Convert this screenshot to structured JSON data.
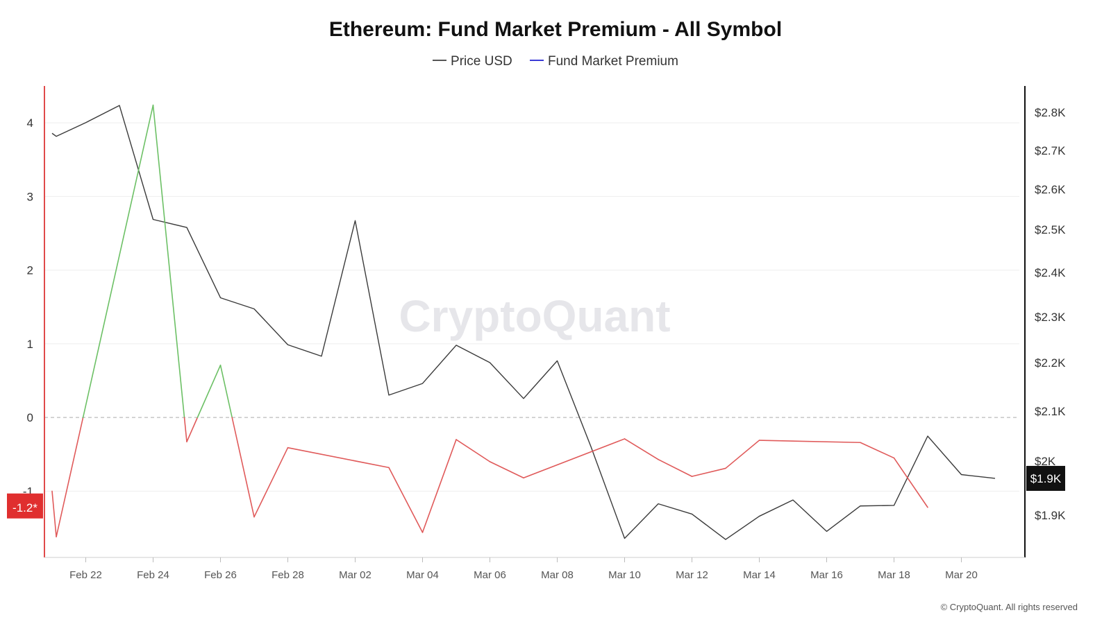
{
  "title": "Ethereum: Fund Market Premium - All Symbol",
  "legend": [
    {
      "label": "Price USD",
      "color": "#555555"
    },
    {
      "label": "Fund Market Premium",
      "color": "#3b3bd6"
    }
  ],
  "copyright": "© CryptoQuant. All rights reserved",
  "watermark": "CryptoQuant",
  "colors": {
    "price": "#3a3a3a",
    "premium_positive": "#6cc065",
    "premium_negative": "#e05a5a",
    "left_axis": "#e04a4a",
    "right_axis": "#111111",
    "zero_line": "#bbbbbb",
    "grid": "#eeeeee",
    "left_badge_bg": "#e02f2f",
    "right_badge_bg": "#111111"
  },
  "chart_data": {
    "type": "line",
    "title": "Ethereum: Fund Market Premium - All Symbol",
    "x_ticks": [
      "Feb 22",
      "Feb 24",
      "Feb 26",
      "Feb 28",
      "Mar 02",
      "Mar 04",
      "Mar 06",
      "Mar 08",
      "Mar 10",
      "Mar 12",
      "Mar 14",
      "Mar 16",
      "Mar 18",
      "Mar 20"
    ],
    "left_axis": {
      "ticks": [
        "4",
        "3",
        "2",
        "1",
        "0",
        "-1"
      ],
      "ylim": [
        -1.9,
        4.5
      ]
    },
    "right_axis": {
      "ticks": [
        "$2.8K",
        "$2.7K",
        "$2.6K",
        "$2.5K",
        "$2.4K",
        "$2.3K",
        "$2.2K",
        "$2.1K",
        "$2K",
        "$1.9K"
      ],
      "ylim": [
        1830,
        2850
      ]
    },
    "left_current_label": "-1.2*",
    "right_current_label": "$1.9K",
    "series": [
      {
        "name": "Price USD",
        "axis": "right",
        "x": [
          "2025-02-21",
          "2025-02-21T03",
          "2025-02-22",
          "2025-02-23",
          "2025-02-24",
          "2025-02-25",
          "2025-02-26",
          "2025-02-27",
          "2025-02-28",
          "2025-03-01",
          "2025-03-02",
          "2025-03-03",
          "2025-03-04",
          "2025-03-05",
          "2025-03-06",
          "2025-03-07",
          "2025-03-08",
          "2025-03-09",
          "2025-03-10",
          "2025-03-11",
          "2025-03-12",
          "2025-03-13",
          "2025-03-14",
          "2025-03-15",
          "2025-03-16",
          "2025-03-17",
          "2025-03-18",
          "2025-03-19",
          "2025-03-20",
          "2025-03-21"
        ],
        "values": [
          2745,
          2737,
          2773,
          2818,
          2525,
          2505,
          2343,
          2318,
          2239,
          2214,
          2522,
          2133,
          2157,
          2238,
          2200,
          2126,
          2204,
          2029,
          1857,
          1921,
          1902,
          1855,
          1898,
          1928,
          1870,
          1917,
          1918,
          2050,
          1975,
          1968
        ]
      },
      {
        "name": "Fund Market Premium",
        "axis": "left",
        "x": [
          "2025-02-21",
          "2025-02-21T03",
          "2025-02-24",
          "2025-02-25",
          "2025-02-26",
          "2025-02-27",
          "2025-02-28",
          "2025-03-03",
          "2025-03-04",
          "2025-03-05",
          "2025-03-06",
          "2025-03-07",
          "2025-03-10",
          "2025-03-11",
          "2025-03-12",
          "2025-03-13",
          "2025-03-14",
          "2025-03-17",
          "2025-03-18",
          "2025-03-19"
        ],
        "values": [
          -1.0,
          -1.62,
          4.24,
          -0.33,
          0.71,
          -1.35,
          -0.41,
          -0.68,
          -1.56,
          -0.3,
          -0.6,
          -0.82,
          -0.29,
          -0.57,
          -0.8,
          -0.69,
          -0.31,
          -0.34,
          -0.55,
          -1.22
        ]
      }
    ]
  }
}
